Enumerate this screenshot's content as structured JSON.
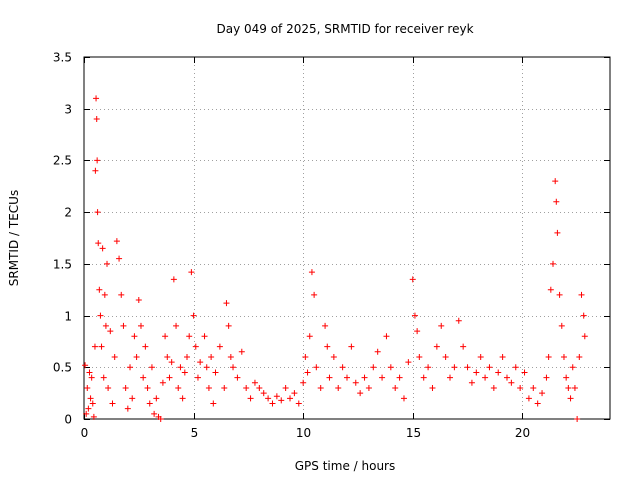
{
  "chart_data": {
    "type": "scatter",
    "title": "Day 049 of 2025, SRMTID for receiver reyk",
    "xlabel": "GPS time / hours",
    "ylabel": "SRMTID / TECUs",
    "xlim": [
      0,
      24
    ],
    "ylim": [
      0,
      3.5
    ],
    "grid": true,
    "marker": "+",
    "color": "#ff0000",
    "x_ticks": [
      {
        "value": 0,
        "label": "0"
      },
      {
        "value": 5,
        "label": "5"
      },
      {
        "value": 10,
        "label": "10"
      },
      {
        "value": 15,
        "label": "15"
      },
      {
        "value": 20,
        "label": "20"
      }
    ],
    "y_ticks": [
      {
        "value": 0,
        "label": "0"
      },
      {
        "value": 0.5,
        "label": "0.5"
      },
      {
        "value": 1,
        "label": "1"
      },
      {
        "value": 1.5,
        "label": "1.5"
      },
      {
        "value": 2,
        "label": "2"
      },
      {
        "value": 2.5,
        "label": "2.5"
      },
      {
        "value": 3,
        "label": "3"
      },
      {
        "value": 3.5,
        "label": "3.5"
      }
    ],
    "series": [
      {
        "name": "SRMTID",
        "points": [
          [
            0.05,
            0.52
          ],
          [
            0.1,
            0.05
          ],
          [
            0.15,
            0.3
          ],
          [
            0.2,
            0.1
          ],
          [
            0.25,
            0.45
          ],
          [
            0.3,
            0.2
          ],
          [
            0.35,
            0.4
          ],
          [
            0.4,
            0.15
          ],
          [
            0.45,
            0.02
          ],
          [
            0.5,
            0.7
          ],
          [
            0.52,
            2.4
          ],
          [
            0.55,
            3.1
          ],
          [
            0.58,
            2.9
          ],
          [
            0.6,
            2.5
          ],
          [
            0.62,
            2.0
          ],
          [
            0.65,
            1.7
          ],
          [
            0.7,
            1.25
          ],
          [
            0.75,
            1.0
          ],
          [
            0.8,
            0.7
          ],
          [
            0.85,
            1.65
          ],
          [
            0.9,
            0.4
          ],
          [
            0.95,
            1.2
          ],
          [
            1.0,
            0.9
          ],
          [
            1.05,
            1.5
          ],
          [
            1.1,
            0.3
          ],
          [
            1.2,
            0.85
          ],
          [
            1.3,
            0.15
          ],
          [
            1.4,
            0.6
          ],
          [
            1.5,
            1.72
          ],
          [
            1.6,
            1.55
          ],
          [
            1.7,
            1.2
          ],
          [
            1.8,
            0.9
          ],
          [
            1.9,
            0.3
          ],
          [
            2.0,
            0.1
          ],
          [
            2.1,
            0.5
          ],
          [
            2.2,
            0.2
          ],
          [
            2.3,
            0.8
          ],
          [
            2.4,
            0.6
          ],
          [
            2.5,
            1.15
          ],
          [
            2.6,
            0.9
          ],
          [
            2.7,
            0.4
          ],
          [
            2.8,
            0.7
          ],
          [
            2.9,
            0.3
          ],
          [
            3.0,
            0.15
          ],
          [
            3.1,
            0.5
          ],
          [
            3.2,
            0.05
          ],
          [
            3.3,
            0.2
          ],
          [
            3.4,
            0.02
          ],
          [
            3.5,
            0.0
          ],
          [
            3.6,
            0.35
          ],
          [
            3.7,
            0.8
          ],
          [
            3.8,
            0.6
          ],
          [
            3.9,
            0.4
          ],
          [
            4.0,
            0.55
          ],
          [
            4.1,
            1.35
          ],
          [
            4.2,
            0.9
          ],
          [
            4.3,
            0.3
          ],
          [
            4.4,
            0.5
          ],
          [
            4.5,
            0.2
          ],
          [
            4.6,
            0.45
          ],
          [
            4.7,
            0.6
          ],
          [
            4.8,
            0.8
          ],
          [
            4.9,
            1.42
          ],
          [
            5.0,
            1.0
          ],
          [
            5.1,
            0.7
          ],
          [
            5.2,
            0.4
          ],
          [
            5.3,
            0.55
          ],
          [
            5.5,
            0.8
          ],
          [
            5.6,
            0.5
          ],
          [
            5.7,
            0.3
          ],
          [
            5.8,
            0.6
          ],
          [
            5.9,
            0.15
          ],
          [
            6.0,
            0.45
          ],
          [
            6.2,
            0.7
          ],
          [
            6.4,
            0.3
          ],
          [
            6.5,
            1.12
          ],
          [
            6.6,
            0.9
          ],
          [
            6.7,
            0.6
          ],
          [
            6.8,
            0.5
          ],
          [
            7.0,
            0.4
          ],
          [
            7.2,
            0.65
          ],
          [
            7.4,
            0.3
          ],
          [
            7.6,
            0.2
          ],
          [
            7.8,
            0.35
          ],
          [
            8.0,
            0.3
          ],
          [
            8.2,
            0.25
          ],
          [
            8.4,
            0.2
          ],
          [
            8.6,
            0.15
          ],
          [
            8.8,
            0.22
          ],
          [
            9.0,
            0.18
          ],
          [
            9.2,
            0.3
          ],
          [
            9.4,
            0.2
          ],
          [
            9.6,
            0.25
          ],
          [
            9.8,
            0.15
          ],
          [
            10.0,
            0.35
          ],
          [
            10.1,
            0.6
          ],
          [
            10.2,
            0.45
          ],
          [
            10.3,
            0.8
          ],
          [
            10.4,
            1.42
          ],
          [
            10.5,
            1.2
          ],
          [
            10.6,
            0.5
          ],
          [
            10.8,
            0.3
          ],
          [
            11.0,
            0.9
          ],
          [
            11.1,
            0.7
          ],
          [
            11.2,
            0.4
          ],
          [
            11.4,
            0.6
          ],
          [
            11.6,
            0.3
          ],
          [
            11.8,
            0.5
          ],
          [
            12.0,
            0.4
          ],
          [
            12.2,
            0.7
          ],
          [
            12.4,
            0.35
          ],
          [
            12.6,
            0.25
          ],
          [
            12.8,
            0.4
          ],
          [
            13.0,
            0.3
          ],
          [
            13.2,
            0.5
          ],
          [
            13.4,
            0.65
          ],
          [
            13.6,
            0.4
          ],
          [
            13.8,
            0.8
          ],
          [
            14.0,
            0.5
          ],
          [
            14.2,
            0.3
          ],
          [
            14.4,
            0.4
          ],
          [
            14.6,
            0.2
          ],
          [
            14.8,
            0.55
          ],
          [
            15.0,
            1.35
          ],
          [
            15.1,
            1.0
          ],
          [
            15.2,
            0.85
          ],
          [
            15.3,
            0.6
          ],
          [
            15.5,
            0.4
          ],
          [
            15.7,
            0.5
          ],
          [
            15.9,
            0.3
          ],
          [
            16.1,
            0.7
          ],
          [
            16.3,
            0.9
          ],
          [
            16.5,
            0.6
          ],
          [
            16.7,
            0.4
          ],
          [
            16.9,
            0.5
          ],
          [
            17.1,
            0.95
          ],
          [
            17.3,
            0.7
          ],
          [
            17.5,
            0.5
          ],
          [
            17.7,
            0.35
          ],
          [
            17.9,
            0.45
          ],
          [
            18.1,
            0.6
          ],
          [
            18.3,
            0.4
          ],
          [
            18.5,
            0.5
          ],
          [
            18.7,
            0.3
          ],
          [
            18.9,
            0.45
          ],
          [
            19.1,
            0.6
          ],
          [
            19.3,
            0.4
          ],
          [
            19.5,
            0.35
          ],
          [
            19.7,
            0.5
          ],
          [
            19.9,
            0.3
          ],
          [
            20.1,
            0.45
          ],
          [
            20.3,
            0.2
          ],
          [
            20.5,
            0.3
          ],
          [
            20.7,
            0.15
          ],
          [
            20.9,
            0.25
          ],
          [
            21.1,
            0.4
          ],
          [
            21.2,
            0.6
          ],
          [
            21.3,
            1.25
          ],
          [
            21.4,
            1.5
          ],
          [
            21.5,
            2.3
          ],
          [
            21.55,
            2.1
          ],
          [
            21.6,
            1.8
          ],
          [
            21.7,
            1.2
          ],
          [
            21.8,
            0.9
          ],
          [
            21.9,
            0.6
          ],
          [
            22.0,
            0.4
          ],
          [
            22.1,
            0.3
          ],
          [
            22.2,
            0.2
          ],
          [
            22.3,
            0.5
          ],
          [
            22.4,
            0.3
          ],
          [
            22.5,
            0.0
          ],
          [
            22.6,
            0.6
          ],
          [
            22.7,
            1.2
          ],
          [
            22.8,
            1.0
          ],
          [
            22.85,
            0.8
          ]
        ]
      }
    ]
  }
}
